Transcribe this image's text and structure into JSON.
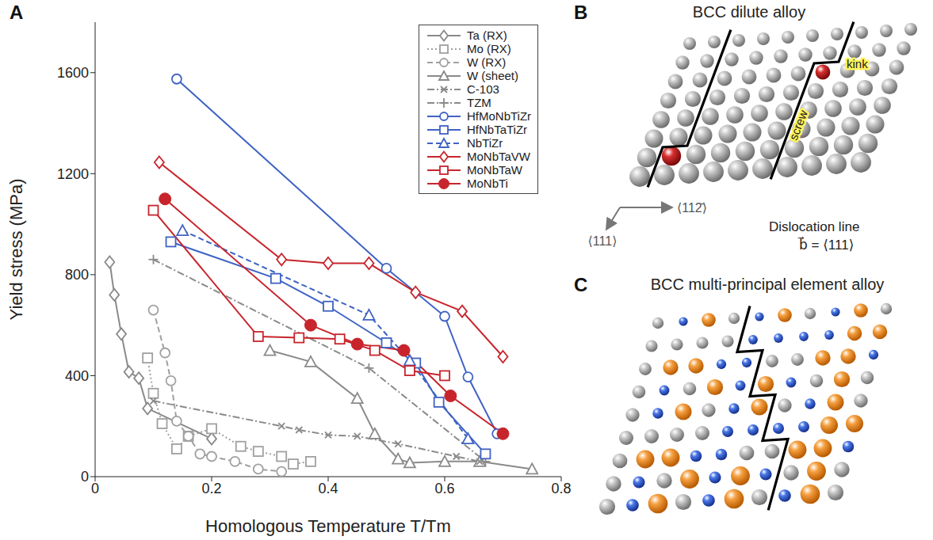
{
  "panel_labels": [
    "A",
    "B",
    "C"
  ],
  "chart_data": {
    "type": "line",
    "xlabel": "Homologous Temperature T/Tm",
    "ylabel": "Yield stress (MPa)",
    "xlim": [
      0,
      0.8
    ],
    "ylim": [
      0,
      1800
    ],
    "xticks": [
      0,
      0.2,
      0.4,
      0.6,
      0.8
    ],
    "yticks": [
      0,
      400,
      800,
      1200,
      1600
    ],
    "legend": "upper right",
    "series": [
      {
        "name": "Ta (RX)",
        "color": "#8a8a8a",
        "marker": "diamond",
        "line_style": "solid",
        "x": [
          0.025,
          0.033,
          0.045,
          0.058,
          0.075,
          0.09,
          0.2
        ],
        "values": [
          850,
          720,
          565,
          415,
          390,
          270,
          150
        ]
      },
      {
        "name": "Mo (RX)",
        "color": "#a0a0a0",
        "marker": "square",
        "line_style": "dotted",
        "x": [
          0.09,
          0.1,
          0.115,
          0.14,
          0.16,
          0.2,
          0.25,
          0.28,
          0.32,
          0.34,
          0.37
        ],
        "values": [
          470,
          330,
          210,
          110,
          160,
          190,
          120,
          100,
          80,
          50,
          60
        ]
      },
      {
        "name": "W (RX)",
        "color": "#a0a0a0",
        "marker": "circle",
        "line_style": "dashed",
        "x": [
          0.1,
          0.12,
          0.13,
          0.14,
          0.16,
          0.18,
          0.2,
          0.24,
          0.28,
          0.32
        ],
        "values": [
          660,
          490,
          380,
          220,
          160,
          90,
          80,
          60,
          30,
          20
        ]
      },
      {
        "name": "W (sheet)",
        "color": "#8a8a8a",
        "marker": "triangle",
        "line_style": "solid",
        "x": [
          0.3,
          0.37,
          0.45,
          0.48,
          0.52,
          0.54,
          0.6,
          0.66,
          0.75
        ],
        "values": [
          500,
          455,
          310,
          170,
          70,
          55,
          60,
          60,
          30
        ]
      },
      {
        "name": "C-103",
        "color": "#8a8a8a",
        "marker": "x",
        "line_style": "dashdot",
        "x": [
          0.1,
          0.32,
          0.35,
          0.4,
          0.45,
          0.52,
          0.62,
          0.66
        ],
        "values": [
          300,
          200,
          185,
          165,
          160,
          130,
          80,
          60
        ]
      },
      {
        "name": "TZM",
        "color": "#8a8a8a",
        "marker": "plus",
        "line_style": "dashdot",
        "x": [
          0.1,
          0.47,
          0.67
        ],
        "values": [
          860,
          430,
          60
        ]
      },
      {
        "name": "HfMoNbTiZr",
        "color": "#3f63c4",
        "marker": "circle",
        "line_style": "solid",
        "x": [
          0.14,
          0.5,
          0.6,
          0.64,
          0.69
        ],
        "values": [
          1575,
          825,
          635,
          395,
          170
        ]
      },
      {
        "name": "HfNbTaTiZr",
        "color": "#3f63c4",
        "marker": "square",
        "line_style": "solid",
        "x": [
          0.13,
          0.31,
          0.4,
          0.5,
          0.55,
          0.59,
          0.67
        ],
        "values": [
          930,
          785,
          675,
          530,
          450,
          295,
          90
        ]
      },
      {
        "name": "NbTiZr",
        "color": "#3f63c4",
        "marker": "triangle",
        "line_style": "dashed",
        "x": [
          0.15,
          0.47,
          0.54,
          0.64
        ],
        "values": [
          975,
          640,
          460,
          150
        ]
      },
      {
        "name": "MoNbTaVW",
        "color": "#c8242c",
        "marker": "diamond",
        "line_style": "solid",
        "x": [
          0.11,
          0.32,
          0.4,
          0.47,
          0.55,
          0.63,
          0.7
        ],
        "values": [
          1245,
          860,
          845,
          845,
          730,
          655,
          475
        ]
      },
      {
        "name": "MoNbTaW",
        "color": "#c8242c",
        "marker": "square",
        "line_style": "solid",
        "x": [
          0.1,
          0.28,
          0.35,
          0.42,
          0.48,
          0.54,
          0.6
        ],
        "values": [
          1055,
          555,
          550,
          545,
          500,
          420,
          400
        ]
      },
      {
        "name": "MoNbTi",
        "color": "#c8242c",
        "marker": "filled_circle",
        "line_style": "solid",
        "x": [
          0.12,
          0.37,
          0.45,
          0.53,
          0.61,
          0.7
        ],
        "values": [
          1100,
          600,
          525,
          500,
          320,
          170
        ]
      }
    ]
  },
  "diagrams": [
    {
      "title": "BCC dilute alloy",
      "labels": [
        "kink",
        "screw",
        "⟨111⟩",
        "⟨112̄⟩",
        "Dislocation line",
        "b⃗ = ⟨111⟩"
      ]
    },
    {
      "title": "BCC multi-principal element alloy"
    }
  ]
}
